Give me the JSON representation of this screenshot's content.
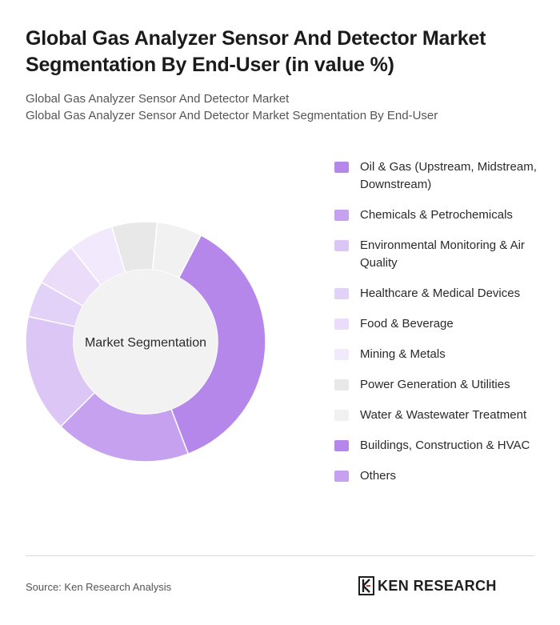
{
  "header": {
    "title": "Global Gas Analyzer Sensor And Detector Market Segmentation By End-User (in value %)",
    "subtitle_line1": "Global Gas Analyzer Sensor And Detector Market",
    "subtitle_line2": "Global Gas Analyzer Sensor And Detector Market Segmentation By End-User"
  },
  "chart_data": {
    "type": "pie",
    "center_label": "Market Segmentation",
    "legend_position": "right",
    "categories": [
      "Oil & Gas (Upstream, Midstream, Downstream)",
      "Chemicals & Petrochemicals",
      "Environmental Monitoring & Air Quality",
      "Healthcare & Medical Devices",
      "Food & Beverage",
      "Mining & Metals",
      "Power Generation & Utilities",
      "Water & Wastewater Treatment",
      "Buildings, Construction & HVAC",
      "Others"
    ],
    "values": [
      30,
      15,
      13,
      4,
      5,
      5,
      5,
      5,
      0,
      0
    ],
    "colors": [
      "#b687ea",
      "#c6a1f0",
      "#dbc6f6",
      "#e2d2f8",
      "#ebddfa",
      "#f2eafc",
      "#e8e8e8",
      "#f1f1f1",
      "#b687ea",
      "#c6a1f0"
    ]
  },
  "footer": {
    "source": "Source: Ken Research Analysis",
    "logo_text": "KEN RESEARCH"
  }
}
